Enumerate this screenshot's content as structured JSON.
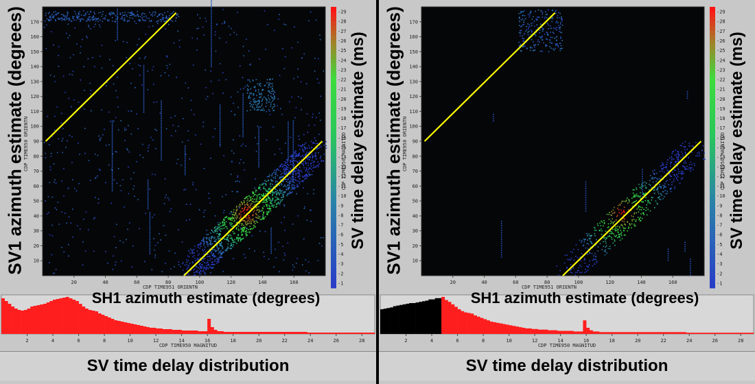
{
  "panels": [
    {
      "id": "left",
      "y_axis_title": "SV1 azimuth estimate (degrees)",
      "x_axis_title": "SH1 azimuth estimate (degrees)",
      "colorbar_title": "SV time delay estimate (ms)",
      "small_y_label": "CDP TIME950 ORIENTN",
      "small_x_label": "CDP TIME951 ORIENTN",
      "colorbar_small_label": "CDP TIME950 MAGNITUD",
      "hist_small_label": "CDP TIME950 MAGNITUD",
      "bottom_title": "SV time delay distribution"
    },
    {
      "id": "right",
      "y_axis_title": "SV1 azimuth estimate (degrees)",
      "x_axis_title": "SH1 azimuth estimate (degrees)",
      "colorbar_title": "SV time delay estimate (ms)",
      "small_y_label": "CDP TIME950 ORIENTN",
      "small_x_label": "CDP TIME951 ORIENTN",
      "colorbar_small_label": "CDP TIME950 MAGNITUD",
      "hist_small_label": "CDP TIME950 MAGNITUD",
      "bottom_title": "SV time delay distribution"
    }
  ],
  "chart_data": [
    {
      "type": "scatter",
      "panel": "left",
      "xlabel": "SH1 azimuth estimate (degrees)",
      "ylabel": "SV1 azimuth estimate (degrees)",
      "xlim": [
        0,
        180
      ],
      "ylim": [
        0,
        180
      ],
      "x_ticks": [
        20,
        40,
        60,
        80,
        100,
        120,
        140,
        160
      ],
      "y_ticks": [
        10,
        20,
        30,
        40,
        50,
        60,
        70,
        80,
        90,
        100,
        110,
        120,
        130,
        140,
        150,
        160,
        170
      ],
      "reference_lines": [
        {
          "x": [
            2,
            85
          ],
          "y": [
            90,
            176
          ],
          "color": "#ffff00"
        },
        {
          "x": [
            90,
            178
          ],
          "y": [
            0,
            90
          ],
          "color": "#ffff00"
        }
      ],
      "peak": {
        "x": 130,
        "y": 42
      },
      "colorbar": {
        "label": "SV time delay estimate (ms)",
        "min": 1,
        "max": 29,
        "ticks": [
          1,
          2,
          3,
          4,
          5,
          6,
          7,
          8,
          9,
          10,
          11,
          12,
          13,
          14,
          15,
          16,
          17,
          18,
          19,
          20,
          21,
          22,
          23,
          24,
          25,
          26,
          27,
          28,
          29
        ]
      }
    },
    {
      "type": "scatter",
      "panel": "right",
      "xlabel": "SH1 azimuth estimate (degrees)",
      "ylabel": "SV1 azimuth estimate (degrees)",
      "xlim": [
        0,
        180
      ],
      "ylim": [
        0,
        180
      ],
      "x_ticks": [
        20,
        40,
        60,
        80,
        100,
        120,
        140,
        160
      ],
      "y_ticks": [
        10,
        20,
        30,
        40,
        50,
        60,
        70,
        80,
        90,
        100,
        110,
        120,
        130,
        140,
        150,
        160,
        170
      ],
      "reference_lines": [
        {
          "x": [
            2,
            85
          ],
          "y": [
            90,
            176
          ],
          "color": "#ffff00"
        },
        {
          "x": [
            90,
            178
          ],
          "y": [
            0,
            90
          ],
          "color": "#ffff00"
        }
      ],
      "peak": {
        "x": 128,
        "y": 42
      },
      "colorbar": {
        "label": "SV time delay estimate (ms)",
        "min": 1,
        "max": 29,
        "ticks": [
          1,
          2,
          3,
          4,
          5,
          6,
          7,
          8,
          9,
          10,
          11,
          12,
          13,
          14,
          15,
          16,
          17,
          18,
          19,
          20,
          21,
          22,
          23,
          24,
          25,
          26,
          27,
          28,
          29
        ]
      }
    },
    {
      "type": "bar",
      "panel": "left",
      "title": "SV time delay distribution",
      "xlim": [
        0,
        29
      ],
      "x_ticks": [
        2,
        4,
        6,
        8,
        10,
        12,
        14,
        16,
        18,
        20,
        22,
        24,
        26,
        28
      ],
      "bin_width": 0.25,
      "values": [
        52,
        48,
        44,
        40,
        37,
        35,
        34,
        35,
        37,
        40,
        41,
        42,
        43,
        44,
        46,
        48,
        50,
        51,
        52,
        53,
        54,
        52,
        50,
        48,
        44,
        40,
        37,
        35,
        34,
        33,
        30,
        28,
        26,
        24,
        22,
        20,
        19,
        18,
        17,
        16,
        15,
        14,
        13,
        12,
        11,
        10,
        9,
        9,
        8,
        8,
        7,
        7,
        7,
        6,
        6,
        6,
        5,
        5,
        5,
        5,
        5,
        4,
        4,
        4,
        22,
        10,
        6,
        4,
        4,
        3,
        3,
        3,
        3,
        3,
        3,
        3,
        3,
        3,
        3,
        3,
        3,
        3,
        3,
        3,
        3,
        3,
        3,
        3,
        3,
        3,
        3,
        3,
        3,
        3,
        3,
        2,
        2,
        2,
        2,
        2,
        2,
        2,
        2,
        2,
        2,
        2,
        2,
        2,
        2,
        2,
        2,
        2,
        2,
        2,
        2,
        2
      ],
      "color": "#ff1e1e"
    },
    {
      "type": "bar",
      "panel": "right",
      "title": "SV time delay distribution",
      "xlim": [
        0,
        29
      ],
      "x_ticks": [
        2,
        4,
        6,
        8,
        10,
        12,
        14,
        16,
        18,
        20,
        22,
        24,
        26,
        28
      ],
      "bin_width": 0.25,
      "values": [
        40,
        41,
        42,
        43,
        45,
        46,
        47,
        48,
        49,
        50,
        50,
        51,
        52,
        53,
        54,
        56,
        56,
        58,
        58,
        60,
        55,
        52,
        48,
        44,
        40,
        37,
        35,
        34,
        33,
        30,
        28,
        26,
        24,
        22,
        20,
        19,
        18,
        17,
        16,
        15,
        14,
        13,
        12,
        11,
        10,
        9,
        9,
        8,
        8,
        7,
        7,
        7,
        6,
        6,
        6,
        5,
        5,
        5,
        5,
        5,
        4,
        4,
        4,
        22,
        10,
        6,
        4,
        4,
        3,
        3,
        3,
        3,
        3,
        3,
        3,
        3,
        3,
        3,
        3,
        3,
        3,
        3,
        3,
        3,
        3,
        3,
        3,
        3,
        3,
        3,
        3,
        3,
        3,
        3,
        3,
        2,
        2,
        2,
        2,
        2,
        2,
        2,
        2,
        2,
        2,
        2,
        2,
        2,
        2,
        2,
        2,
        2,
        2,
        2,
        2,
        2
      ],
      "black_bins_below": 4.6,
      "color": "#ff1e1e"
    }
  ],
  "colors": {
    "background": "#000000",
    "panel_bg": "#c8c8c8",
    "reference_line": "#ffff00",
    "histogram": "#ff1e1e",
    "histogram_masked": "#000000"
  }
}
